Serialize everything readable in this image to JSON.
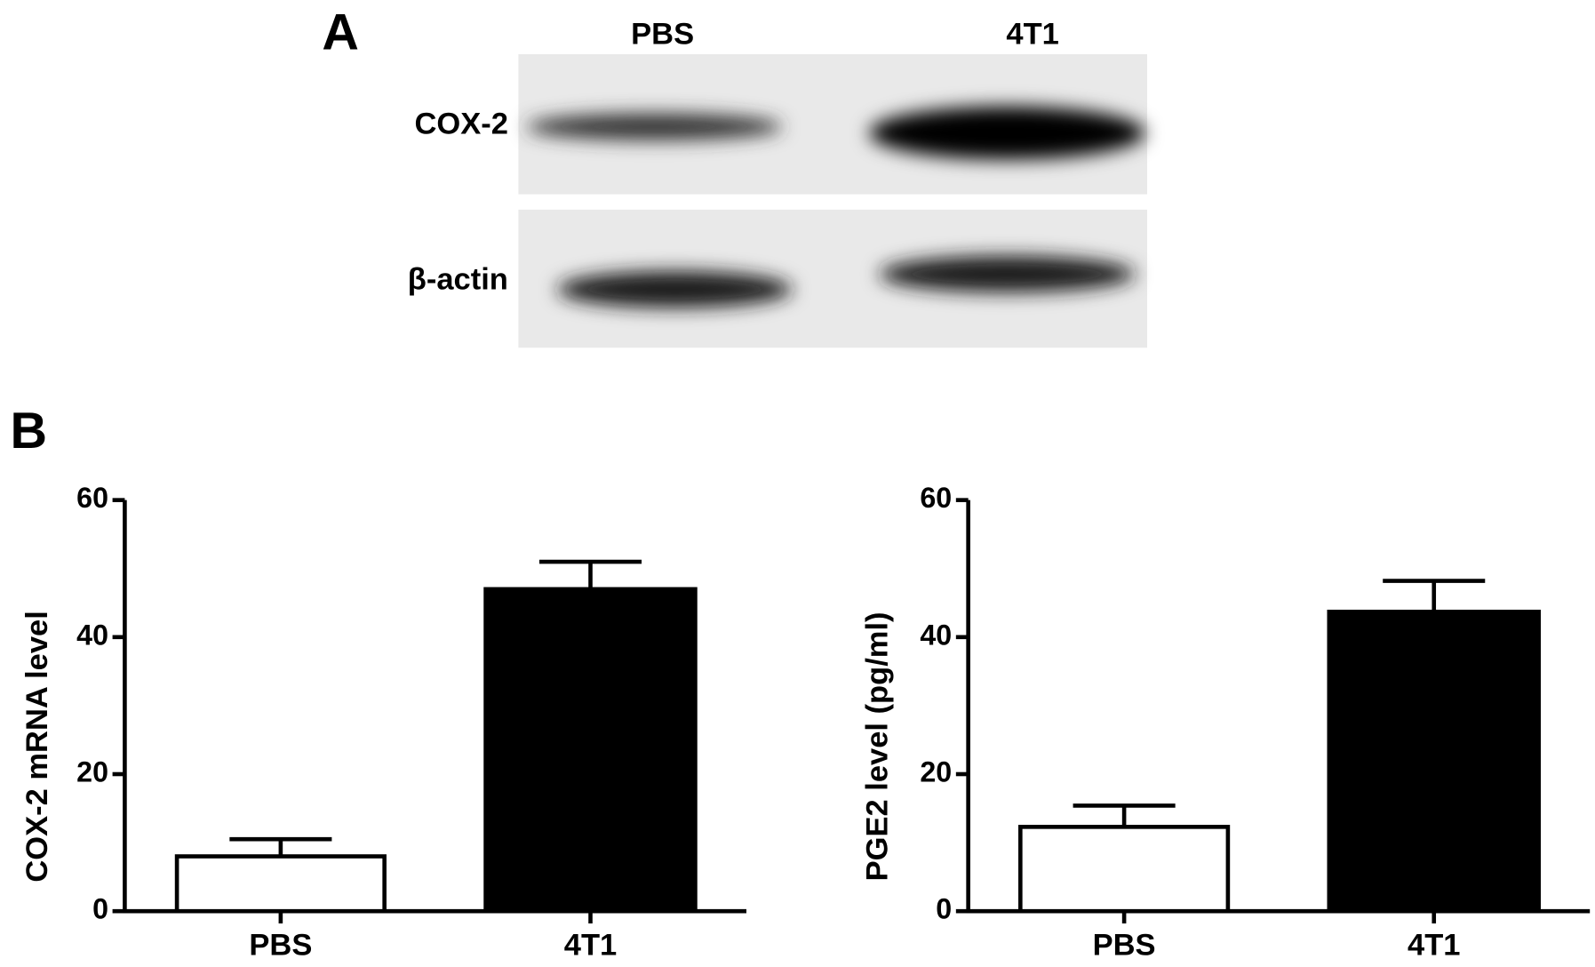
{
  "figure": {
    "panel_a": "A",
    "panel_b": "B"
  },
  "blot": {
    "columns": [
      "PBS",
      "4T1"
    ],
    "rows": [
      "COX-2",
      "β-actin"
    ]
  },
  "chart_data": [
    {
      "type": "bar",
      "ylabel": "COX-2 mRNA level",
      "categories": [
        "PBS",
        "4T1"
      ],
      "values": [
        8,
        47
      ],
      "errors": [
        2.5,
        4
      ],
      "colors": [
        "#ffffff",
        "#000000"
      ],
      "ylim": [
        0,
        60
      ],
      "yticks": [
        0,
        20,
        40,
        60
      ]
    },
    {
      "type": "bar",
      "ylabel": "PGE2 level (pg/ml)",
      "categories": [
        "PBS",
        "4T1"
      ],
      "values": [
        12.3,
        43.7
      ],
      "errors": [
        3.1,
        4.5
      ],
      "colors": [
        "#ffffff",
        "#000000"
      ],
      "ylim": [
        0,
        60
      ],
      "yticks": [
        0,
        20,
        40,
        60
      ]
    }
  ]
}
